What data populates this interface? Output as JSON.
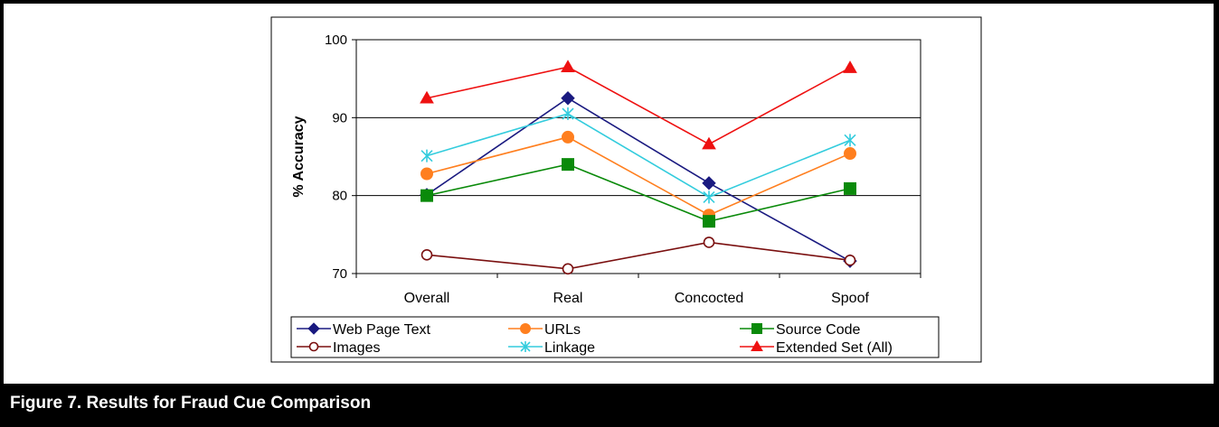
{
  "caption": "Figure 7.  Results for Fraud Cue Comparison",
  "chart_data": {
    "type": "line",
    "title": "",
    "xlabel": "",
    "ylabel": "% Accuracy",
    "categories": [
      "Overall",
      "Real",
      "Concocted",
      "Spoof"
    ],
    "ylim": [
      70,
      100
    ],
    "yticks": [
      70,
      80,
      90,
      100
    ],
    "grid": "horizontal",
    "legend_position": "bottom",
    "series": [
      {
        "name": "Web Page Text",
        "values": [
          80.1,
          92.5,
          81.6,
          71.6
        ],
        "color": "#1a1a80",
        "marker": "diamond"
      },
      {
        "name": "URLs",
        "values": [
          82.8,
          87.5,
          77.5,
          85.4
        ],
        "color": "#ff7f1f",
        "marker": "circle"
      },
      {
        "name": "Source Code",
        "values": [
          80.0,
          84.0,
          76.7,
          80.9
        ],
        "color": "#0a8a0a",
        "marker": "square"
      },
      {
        "name": "Images",
        "values": [
          72.4,
          70.6,
          74.0,
          71.7
        ],
        "color": "#7a0f0f",
        "marker": "open-circle"
      },
      {
        "name": "Linkage",
        "values": [
          85.1,
          90.5,
          79.8,
          87.1
        ],
        "color": "#33ccdd",
        "marker": "asterisk"
      },
      {
        "name": "Extended Set (All)",
        "values": [
          92.5,
          96.5,
          86.6,
          96.4
        ],
        "color": "#ee1111",
        "marker": "triangle"
      }
    ]
  }
}
